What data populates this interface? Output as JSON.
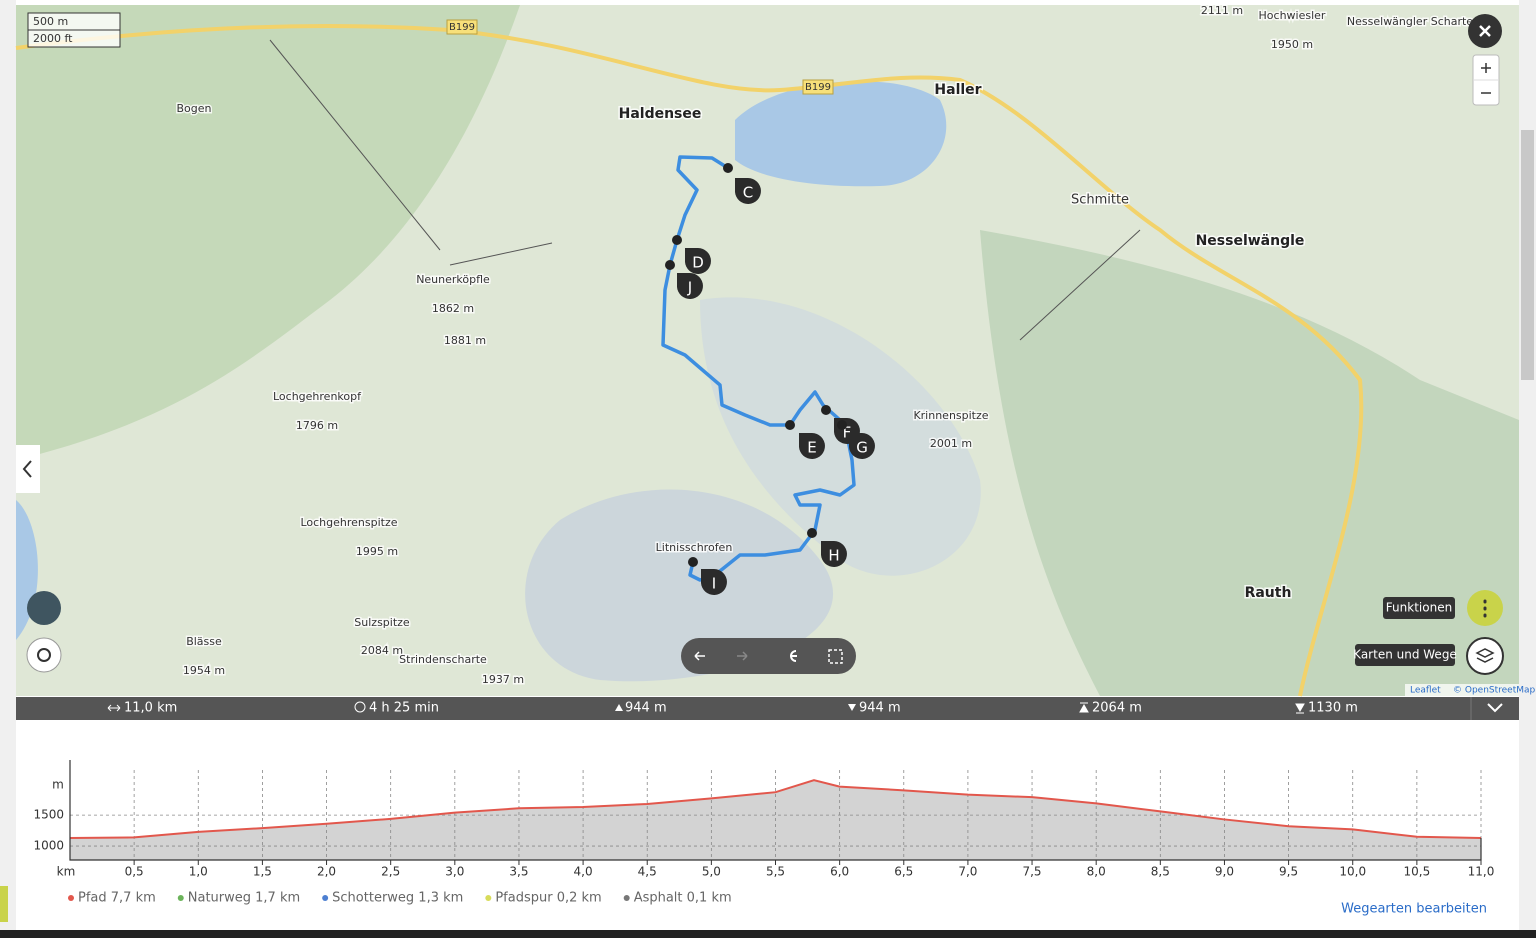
{
  "map": {
    "scale": [
      "500 m",
      "2000 ft"
    ],
    "roads": [
      "B199",
      "B199"
    ],
    "labels": [
      "Haldensee",
      "Haller",
      "Schmitte",
      "Nesselwängle",
      "Rauth",
      "Bogen",
      "Neunerköpfle",
      "1862 m",
      "1881 m",
      "Lochgehrenkopf",
      "1796 m",
      "Lochgehrenspitze",
      "1995 m",
      "Sulzspitze",
      "2084 m",
      "Blässe",
      "1954 m",
      "Strindenscharte",
      "1937 m",
      "Litnisschrofen",
      "Krinnenspitze",
      "2001 m",
      "Hochwiesler",
      "1950 m",
      "Nesselwängler Scharte",
      "2111 m"
    ],
    "waypoints": [
      "C",
      "D",
      "J",
      "E",
      "F",
      "G",
      "H",
      "I"
    ],
    "buttons": [
      "Funktionen",
      "Karten und Wege"
    ],
    "attribution": [
      "Leaflet",
      "© OpenStreetMap"
    ]
  },
  "stats": [
    "11,0 km",
    "4 h 25 min",
    "944 m",
    "944 m",
    "2064 m",
    "1130 m"
  ],
  "chart_data": {
    "type": "area",
    "y_label": "m",
    "x_label": "km",
    "x": [
      0,
      0.5,
      1.0,
      1.5,
      2.0,
      2.5,
      3.0,
      3.5,
      4.0,
      4.5,
      5.0,
      5.5,
      5.8,
      6.0,
      6.5,
      7.0,
      7.5,
      8.0,
      8.5,
      9.0,
      9.5,
      10.0,
      10.5,
      11.0
    ],
    "values": [
      1130,
      1140,
      1230,
      1290,
      1360,
      1440,
      1540,
      1610,
      1630,
      1680,
      1770,
      1870,
      2064,
      1960,
      1900,
      1830,
      1790,
      1690,
      1560,
      1430,
      1320,
      1270,
      1150,
      1130
    ],
    "color": "#e2574c",
    "fill": "#d3d3d3",
    "xlim": [
      0,
      11.0
    ],
    "ylim": [
      775,
      2390
    ],
    "xticks": [
      {
        "value": 0.5,
        "label": "0,5"
      },
      {
        "value": 1.0,
        "label": "1,0"
      },
      {
        "value": 1.5,
        "label": "1,5"
      },
      {
        "value": 2.0,
        "label": "2,0"
      },
      {
        "value": 2.5,
        "label": "2,5"
      },
      {
        "value": 3.0,
        "label": "3,0"
      },
      {
        "value": 3.5,
        "label": "3,5"
      },
      {
        "value": 4.0,
        "label": "4,0"
      },
      {
        "value": 4.5,
        "label": "4,5"
      },
      {
        "value": 5.0,
        "label": "5,0"
      },
      {
        "value": 5.5,
        "label": "5,5"
      },
      {
        "value": 6.0,
        "label": "6,0"
      },
      {
        "value": 6.5,
        "label": "6,5"
      },
      {
        "value": 7.0,
        "label": "7,0"
      },
      {
        "value": 7.5,
        "label": "7,5"
      },
      {
        "value": 8.0,
        "label": "8,0"
      },
      {
        "value": 8.5,
        "label": "8,5"
      },
      {
        "value": 9.0,
        "label": "9,0"
      },
      {
        "value": 9.5,
        "label": "9,5"
      },
      {
        "value": 10.0,
        "label": "10,0"
      },
      {
        "value": 10.5,
        "label": "10,5"
      },
      {
        "value": 11.0,
        "label": "11,0"
      }
    ],
    "yticks": [
      1000,
      1500
    ],
    "grid": true,
    "surface_legend": [
      {
        "label": "Pfad 7,7 km",
        "color": "#e2574c"
      },
      {
        "label": "Naturweg 1,7 km",
        "color": "#6bb35a"
      },
      {
        "label": "Schotterweg 1,3 km",
        "color": "#4d7fd1"
      },
      {
        "label": "Pfadspur 0,2 km",
        "color": "#d8dc5a"
      },
      {
        "label": "Asphalt 0,1 km",
        "color": "#777777"
      }
    ],
    "edit_link": "Wegearten bearbeiten"
  }
}
